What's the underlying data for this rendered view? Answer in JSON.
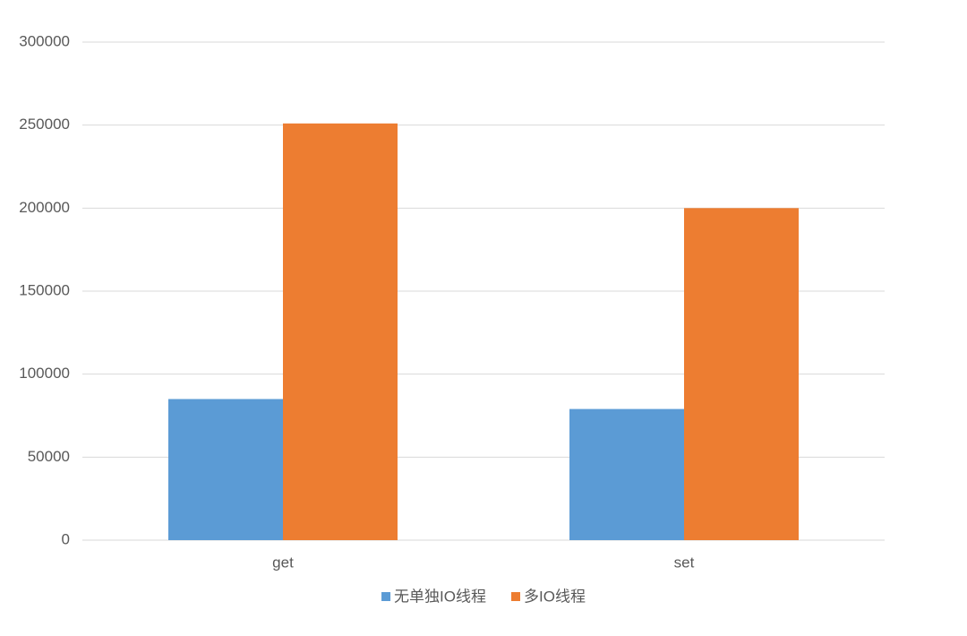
{
  "chart_data": {
    "type": "bar",
    "categories": [
      "get",
      "set"
    ],
    "series": [
      {
        "name": "无单独IO线程",
        "color": "#5b9bd5",
        "values": [
          85000,
          79000
        ]
      },
      {
        "name": "多IO线程",
        "color": "#ed7d31",
        "values": [
          251000,
          200000
        ]
      }
    ],
    "ylim": [
      0,
      300000
    ],
    "yticks": [
      0,
      50000,
      100000,
      150000,
      200000,
      250000,
      300000
    ],
    "grid": true,
    "legend": "bottom"
  }
}
